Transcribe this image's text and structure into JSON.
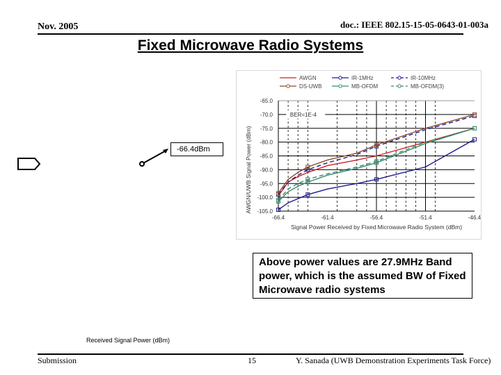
{
  "header": {
    "date": "Nov. 2005",
    "doc_id": "doc.: IEEE 802.15-15-05-0643-01-003a"
  },
  "slide": {
    "title": "Fixed Microwave Radio Systems",
    "callout_label": "-66.4dBm",
    "note": "Above power values are 27.9MHz Band power, which is the assumed BW of Fixed Microwave radio systems",
    "received_signal_power_label": "Received Signal Power (dBm)"
  },
  "footer": {
    "left": "Submission",
    "page": "15",
    "author": "Y. Sanada (UWB Demonstration Experiments Task Force)"
  },
  "chart_data": {
    "type": "line",
    "title": "",
    "xlabel": "Signal Power Received by Fixed Microwave Radio System (dBm)",
    "ylabel": "AWGN/UWB Signal Power (dBm)",
    "x_ticks": [
      "-66.4",
      "-61.4",
      "-56.4",
      "-51.4",
      "-46.4"
    ],
    "y_ticks": [
      "-65.0",
      "-70.0",
      "-75.0",
      "-80.0",
      "-85.0",
      "-90.0",
      "-95.0",
      "-100.0",
      "-105.0"
    ],
    "xlim": [
      -66.4,
      -46.4
    ],
    "ylim": [
      -105,
      -65
    ],
    "annotation": "BER=1E-4",
    "grid": true,
    "legend_position": "top",
    "x": [
      -66.4,
      -65.4,
      -64.4,
      -63.4,
      -61.4,
      -58.4,
      -56.4,
      -51.4,
      -46.4
    ],
    "series": [
      {
        "name": "AWGN",
        "color": "#cc2222",
        "style": "solid",
        "marker": "none",
        "values": [
          -99.5,
          -94.5,
          -92.5,
          -91.0,
          -88.5,
          -86.5,
          -85.0,
          -80.0,
          -75.0
        ]
      },
      {
        "name": "IR-1MHz",
        "color": "#1a1a8c",
        "style": "solid",
        "marker": "diamond",
        "values": [
          -104.5,
          -102.0,
          -100.5,
          -99.0,
          -97.0,
          -95.0,
          -93.5,
          -89.0,
          -79.0
        ]
      },
      {
        "name": "IR-10MHz",
        "color": "#1a1a8c",
        "style": "dashed",
        "marker": "diamond",
        "values": [
          -99.0,
          -94.5,
          -92.0,
          -90.0,
          -87.5,
          -84.5,
          -81.5,
          -75.5,
          -70.5
        ]
      },
      {
        "name": "DS-UWB",
        "color": "#8b4a2b",
        "style": "solid",
        "marker": "square",
        "values": [
          -98.5,
          -93.5,
          -91.0,
          -89.0,
          -86.5,
          -84.0,
          -81.0,
          -75.0,
          -70.0
        ]
      },
      {
        "name": "MB-OFDM",
        "color": "#3a8a6a",
        "style": "solid",
        "marker": "square",
        "values": [
          -101.5,
          -98.0,
          -96.0,
          -94.5,
          -92.0,
          -89.5,
          -87.5,
          -80.5,
          -75.0
        ]
      },
      {
        "name": "MB-OFDM(3)",
        "color": "#3a8a6a",
        "style": "dashed",
        "marker": "square",
        "values": [
          -101.0,
          -97.0,
          -95.0,
          -93.5,
          -91.5,
          -89.0,
          -87.0,
          -80.0,
          -75.0
        ]
      }
    ]
  }
}
